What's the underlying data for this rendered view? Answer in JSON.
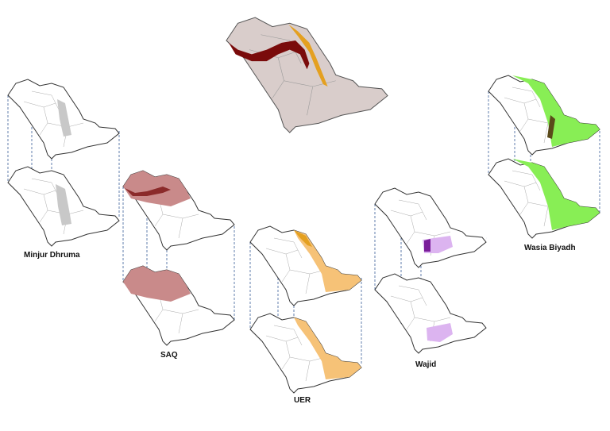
{
  "maps": [
    {
      "label": "Minjur Dhruma"
    },
    {
      "label": "SAQ"
    },
    {
      "label": "UER"
    },
    {
      "label": "Wajid"
    },
    {
      "label": "Wasia Biyadh"
    }
  ]
}
